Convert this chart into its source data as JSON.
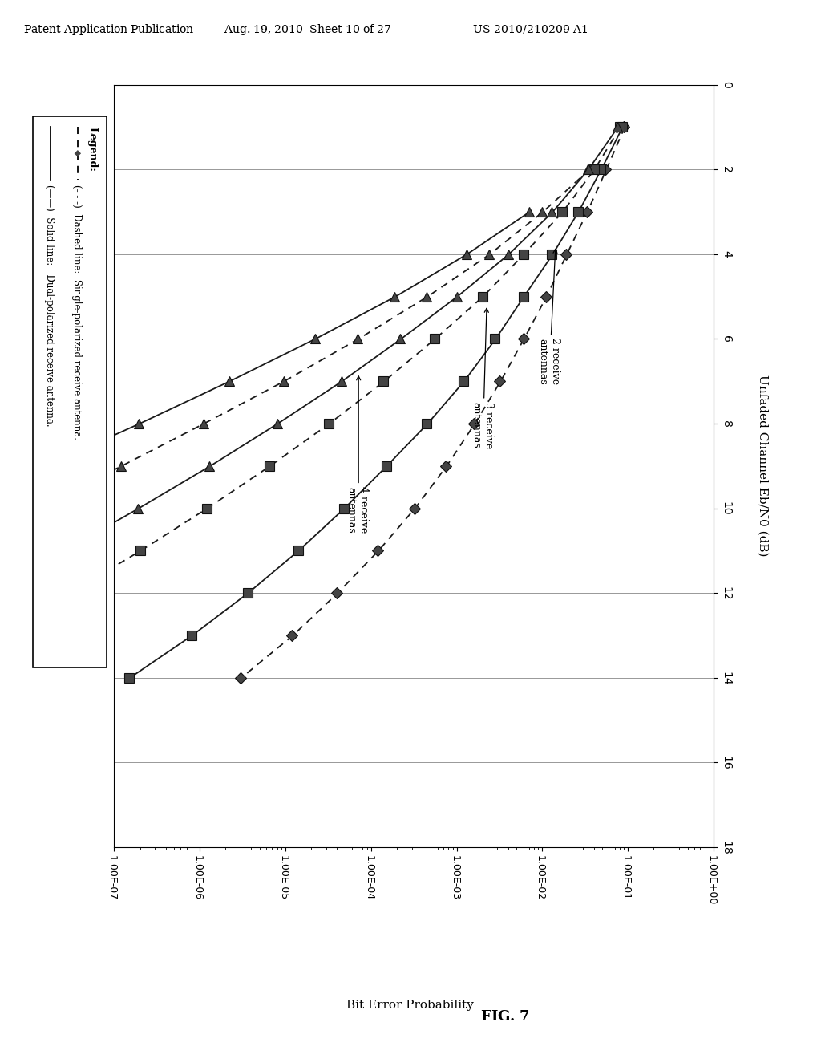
{
  "header_text": "Patent Application Publication    Aug. 19, 2010  Sheet 10 of 27    US 2010/210209 A1",
  "fig_label": "FIG. 7",
  "legend_title": "Legend:",
  "legend_text1": "Dashed line:  Single-polarized receive antenna.",
  "legend_text2": "Solid line:   Dual-polarized receive antenna.",
  "xlabel": "Unfaded Channel Eb/N0 (dB)",
  "ylabel": "Bit Error Probability",
  "x_min": 0,
  "x_max": 18,
  "x_ticks": [
    0,
    2,
    4,
    6,
    8,
    10,
    12,
    14,
    16,
    18
  ],
  "y_log_min": -7,
  "y_log_max": 0,
  "curves": [
    {
      "label": "2rx single-pol",
      "x": [
        1,
        2,
        3,
        4,
        5,
        6,
        7,
        8,
        9,
        10,
        11,
        12,
        13,
        14
      ],
      "y": [
        0.09,
        0.055,
        0.033,
        0.019,
        0.011,
        0.006,
        0.0032,
        0.0016,
        0.00075,
        0.00032,
        0.00012,
        4e-05,
        1.2e-05,
        3e-06
      ],
      "linestyle": "dashed",
      "marker": "D"
    },
    {
      "label": "2rx dual-pol",
      "x": [
        1,
        2,
        3,
        4,
        5,
        6,
        7,
        8,
        9,
        10,
        11,
        12,
        13,
        14
      ],
      "y": [
        0.085,
        0.048,
        0.026,
        0.013,
        0.006,
        0.0028,
        0.0012,
        0.00045,
        0.00015,
        4.8e-05,
        1.4e-05,
        3.6e-06,
        8e-07,
        1.5e-07
      ],
      "linestyle": "solid",
      "marker": "s"
    },
    {
      "label": "3rx single-pol",
      "x": [
        1,
        2,
        3,
        4,
        5,
        6,
        7,
        8,
        9,
        10,
        11,
        12,
        13,
        14
      ],
      "y": [
        0.08,
        0.04,
        0.017,
        0.006,
        0.002,
        0.00055,
        0.00014,
        3.2e-05,
        6.5e-06,
        1.2e-06,
        2e-07,
        3e-08,
        4.5e-09,
        6e-10
      ],
      "linestyle": "dashed",
      "marker": "s"
    },
    {
      "label": "3rx dual-pol",
      "x": [
        1,
        2,
        3,
        4,
        5,
        6,
        7,
        8,
        9,
        10,
        11,
        12,
        13,
        14
      ],
      "y": [
        0.075,
        0.034,
        0.013,
        0.004,
        0.001,
        0.00022,
        4.5e-05,
        8e-06,
        1.3e-06,
        1.9e-07,
        2.6e-08,
        3.3e-09,
        4e-10,
        4.6e-11
      ],
      "linestyle": "solid",
      "marker": "<"
    },
    {
      "label": "4rx single-pol",
      "x": [
        2,
        3,
        4,
        5,
        6,
        7,
        8,
        9,
        10,
        11,
        12,
        13,
        14
      ],
      "y": [
        0.035,
        0.01,
        0.0024,
        0.00045,
        7e-05,
        9.5e-06,
        1.1e-06,
        1.2e-07,
        1.2e-08,
        1.1e-09,
        9.5e-11,
        7.8e-12,
        6e-13
      ],
      "linestyle": "dashed",
      "marker": "<"
    },
    {
      "label": "4rx dual-pol",
      "x": [
        3,
        4,
        5,
        6,
        7,
        8,
        9,
        10,
        11,
        12,
        13,
        14
      ],
      "y": [
        0.007,
        0.0013,
        0.00019,
        2.2e-05,
        2.2e-06,
        1.95e-07,
        1.55e-08,
        1.15e-09,
        8e-11,
        5.2e-12,
        3.3e-13,
        2e-14
      ],
      "linestyle": "solid",
      "marker": "<"
    }
  ]
}
